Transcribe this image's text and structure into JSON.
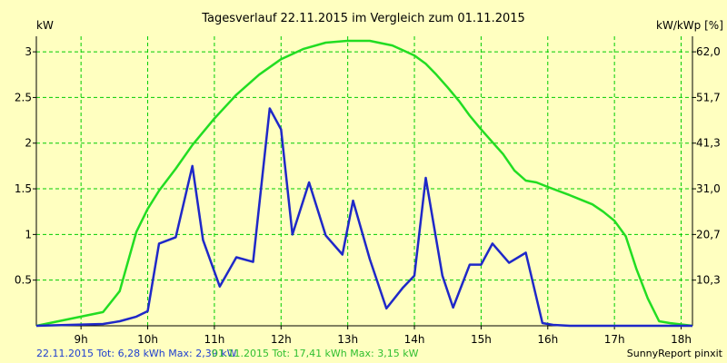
{
  "chart_data": {
    "type": "line",
    "title": "Tagesverlauf 22.11.2015 im Vergleich zum 01.11.2015",
    "ylabel_left": "kW",
    "ylabel_right": "kW/kWp [%]",
    "x_ticks": [
      "9h",
      "10h",
      "11h",
      "12h",
      "13h",
      "14h",
      "15h",
      "16h",
      "17h",
      "18h"
    ],
    "x_tick_values": [
      9,
      10,
      11,
      12,
      13,
      14,
      15,
      16,
      17,
      18
    ],
    "y_ticks_left": [
      "0.5",
      "1",
      "1.5",
      "2",
      "2.5",
      "3"
    ],
    "y_tick_values_left": [
      0.5,
      1,
      1.5,
      2,
      2.5,
      3
    ],
    "y_ticks_right": [
      "10,3",
      "20,7",
      "31,0",
      "41,3",
      "51,7",
      "62,0"
    ],
    "xlim": [
      8.33,
      18.17
    ],
    "ylim": [
      0,
      3.17
    ],
    "grid": true,
    "colors": {
      "background": "#ffffc0",
      "grid": "#00cc00",
      "axis": "#000000",
      "blue_series": "#1f28c8",
      "green_series": "#22dd22"
    },
    "series": [
      {
        "color_key": "green_series",
        "x": [
          8.33,
          9.33,
          9.58,
          9.83,
          10.0,
          10.17,
          10.42,
          10.67,
          11.0,
          11.33,
          11.67,
          12.0,
          12.33,
          12.67,
          13.0,
          13.33,
          13.67,
          14.0,
          14.17,
          14.33,
          14.5,
          14.67,
          14.83,
          15.0,
          15.17,
          15.33,
          15.5,
          15.67,
          15.83,
          16.0,
          16.33,
          16.67,
          16.83,
          17.0,
          17.17,
          17.33,
          17.5,
          17.67,
          17.83,
          18.17
        ],
        "y": [
          0.0,
          0.15,
          0.38,
          1.03,
          1.28,
          1.48,
          1.72,
          1.98,
          2.27,
          2.53,
          2.75,
          2.92,
          3.03,
          3.1,
          3.12,
          3.12,
          3.07,
          2.96,
          2.87,
          2.75,
          2.61,
          2.46,
          2.3,
          2.15,
          2.01,
          1.88,
          1.7,
          1.59,
          1.57,
          1.52,
          1.43,
          1.33,
          1.25,
          1.15,
          0.98,
          0.62,
          0.3,
          0.05,
          0.03,
          0.0
        ]
      },
      {
        "color_key": "blue_series",
        "x": [
          8.33,
          9.33,
          9.58,
          9.83,
          10.0,
          10.17,
          10.42,
          10.67,
          10.83,
          11.08,
          11.33,
          11.58,
          11.83,
          12.0,
          12.17,
          12.42,
          12.67,
          12.92,
          13.08,
          13.33,
          13.58,
          13.83,
          14.0,
          14.17,
          14.42,
          14.58,
          14.83,
          15.0,
          15.17,
          15.42,
          15.67,
          15.92,
          16.08,
          16.33,
          16.58,
          16.83,
          17.0,
          17.17,
          17.42,
          18.17
        ],
        "y": [
          0.0,
          0.02,
          0.05,
          0.1,
          0.16,
          0.9,
          0.97,
          1.75,
          0.94,
          0.43,
          0.75,
          0.7,
          2.38,
          2.15,
          1.0,
          1.57,
          0.99,
          0.78,
          1.37,
          0.73,
          0.19,
          0.42,
          0.55,
          1.62,
          0.55,
          0.2,
          0.67,
          0.67,
          0.9,
          0.69,
          0.8,
          0.03,
          0.01,
          0.0,
          0.0,
          0.0,
          0.0,
          0.0,
          0.0,
          0.0
        ]
      }
    ],
    "footer": {
      "blue_text": "22.11.2015 Tot: 6,28 kWh Max: 2,39 kW",
      "green_text": "01.11.2015 Tot: 17,41 kWh Max: 3,15 kW",
      "brand_text": "SunnyReport pinxit"
    }
  }
}
